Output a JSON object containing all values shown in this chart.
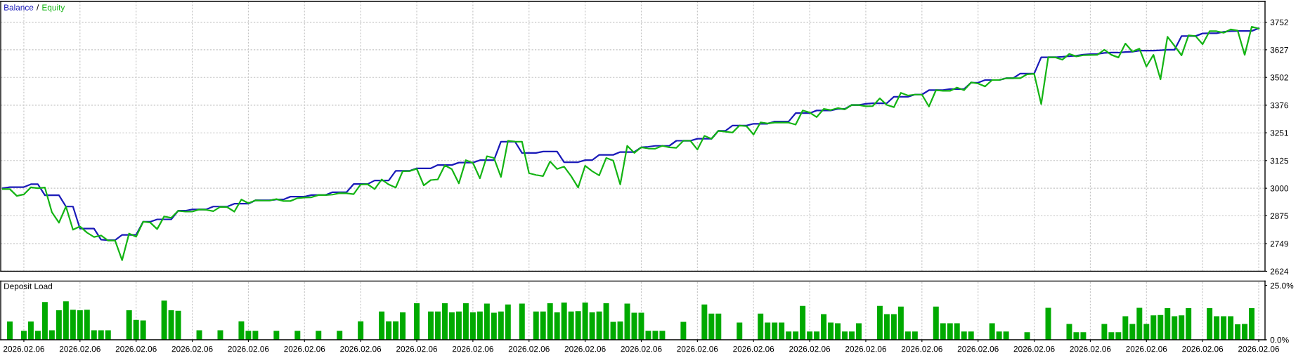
{
  "chart_data": [
    {
      "type": "line",
      "categories": [
        null,
        null,
        null,
        "2026.02.06",
        null,
        null,
        null,
        null,
        null,
        null,
        null,
        "2026.02.06",
        null,
        null,
        null,
        null,
        null,
        null,
        null,
        "2026.02.06",
        null,
        null,
        null,
        null,
        null,
        null,
        null,
        "2026.02.06",
        null,
        null,
        null,
        null,
        null,
        null,
        null,
        "2026.02.06",
        null,
        null,
        null,
        null,
        null,
        null,
        null,
        "2026.02.06",
        null,
        null,
        null,
        null,
        null,
        null,
        null,
        "2026.02.06",
        null,
        null,
        null,
        null,
        null,
        null,
        null,
        "2026.02.06",
        null,
        null,
        null,
        null,
        null,
        null,
        null,
        "2026.02.06",
        null,
        null,
        null,
        null,
        null,
        null,
        null,
        "2026.02.06",
        null,
        null,
        null,
        null,
        null,
        null,
        null,
        "2026.02.06",
        null,
        null,
        null,
        null,
        null,
        null,
        null,
        "2026.02.06",
        null,
        null,
        null,
        null,
        null,
        null,
        null,
        "2026.02.06",
        null,
        null,
        null,
        null,
        null,
        null,
        null,
        "2026.02.06",
        null,
        null,
        null,
        null,
        null,
        null,
        null,
        "2026.02.06",
        null,
        null,
        null,
        null,
        null,
        null,
        null,
        "2026.02.06",
        null,
        null,
        null,
        null,
        null,
        null,
        null,
        "2026.02.06",
        null,
        null,
        null,
        null,
        null,
        null,
        null,
        "2026.02.06",
        null,
        null,
        null,
        null,
        null,
        null,
        null,
        "2026.02.06",
        null,
        null,
        null,
        null,
        null,
        null,
        null,
        "2026.02.06",
        null,
        null,
        null,
        null,
        null,
        null,
        null,
        "2026.02.06",
        null,
        null,
        null,
        null,
        null,
        null,
        null,
        "2026.02.06",
        null,
        null,
        null,
        null,
        null,
        null,
        null,
        "2026.02.06"
      ],
      "series": [
        {
          "name": "Balance",
          "color": "#1a1ab8",
          "values": [
            3000,
            3005,
            3005,
            3005,
            3018,
            3018,
            2968,
            2968,
            2968,
            2917,
            2917,
            2817,
            2817,
            2817,
            2767,
            2765,
            2765,
            2789,
            2789,
            2789,
            2848,
            2848,
            2859,
            2859,
            2859,
            2898,
            2898,
            2904,
            2904,
            2904,
            2917,
            2917,
            2917,
            2930,
            2930,
            2930,
            2945,
            2945,
            2945,
            2949,
            2949,
            2962,
            2962,
            2962,
            2969,
            2969,
            2969,
            2982,
            2982,
            2982,
            3019,
            3019,
            3019,
            3035,
            3035,
            3035,
            3079,
            3079,
            3079,
            3090,
            3090,
            3090,
            3105,
            3105,
            3105,
            3116,
            3116,
            3116,
            3127,
            3127,
            3127,
            3211,
            3211,
            3211,
            3160,
            3160,
            3160,
            3166,
            3166,
            3166,
            3118,
            3118,
            3118,
            3127,
            3127,
            3151,
            3151,
            3151,
            3164,
            3164,
            3164,
            3185,
            3188,
            3192,
            3192,
            3192,
            3215,
            3215,
            3215,
            3224,
            3224,
            3224,
            3260,
            3260,
            3284,
            3284,
            3284,
            3292,
            3292,
            3292,
            3302,
            3302,
            3302,
            3340,
            3340,
            3340,
            3352,
            3352,
            3352,
            3359,
            3359,
            3377,
            3377,
            3382,
            3385,
            3385,
            3385,
            3414,
            3414,
            3414,
            3424,
            3424,
            3444,
            3444,
            3444,
            3449,
            3449,
            3449,
            3478,
            3478,
            3490,
            3490,
            3490,
            3498,
            3498,
            3519,
            3519,
            3519,
            3593,
            3593,
            3593,
            3595,
            3598,
            3600,
            3605,
            3607,
            3608,
            3613,
            3614,
            3614,
            3617,
            3618,
            3623,
            3623,
            3623,
            3625,
            3627,
            3627,
            3689,
            3689,
            3689,
            3701,
            3702,
            3702,
            3708,
            3711,
            3712,
            3712,
            3712,
            3724
          ]
        },
        {
          "name": "Equity",
          "color": "#14b414",
          "values": [
            2996,
            2996,
            2965,
            2972,
            3004,
            3000,
            3003,
            2891,
            2844,
            2917,
            2812,
            2827,
            2799,
            2779,
            2786,
            2763,
            2763,
            2674,
            2795,
            2780,
            2848,
            2845,
            2815,
            2872,
            2866,
            2898,
            2894,
            2894,
            2904,
            2902,
            2896,
            2916,
            2914,
            2894,
            2949,
            2932,
            2945,
            2944,
            2944,
            2951,
            2942,
            2942,
            2955,
            2958,
            2959,
            2969,
            2969,
            2971,
            2978,
            2977,
            2973,
            3017,
            3018,
            2996,
            3040,
            3017,
            3003,
            3077,
            3078,
            3088,
            3013,
            3037,
            3040,
            3104,
            3086,
            3022,
            3127,
            3115,
            3045,
            3145,
            3137,
            3051,
            3215,
            3211,
            3211,
            3068,
            3060,
            3055,
            3121,
            3087,
            3098,
            3055,
            3003,
            3102,
            3077,
            3058,
            3137,
            3125,
            3017,
            3192,
            3160,
            3185,
            3180,
            3179,
            3192,
            3185,
            3183,
            3215,
            3215,
            3175,
            3237,
            3224,
            3260,
            3256,
            3252,
            3284,
            3281,
            3243,
            3298,
            3293,
            3297,
            3297,
            3297,
            3288,
            3352,
            3343,
            3322,
            3359,
            3354,
            3363,
            3357,
            3377,
            3377,
            3371,
            3372,
            3407,
            3377,
            3367,
            3432,
            3420,
            3424,
            3424,
            3370,
            3444,
            3441,
            3441,
            3456,
            3444,
            3479,
            3474,
            3461,
            3490,
            3490,
            3498,
            3498,
            3498,
            3516,
            3518,
            3381,
            3593,
            3593,
            3582,
            3608,
            3597,
            3602,
            3603,
            3604,
            3627,
            3604,
            3592,
            3655,
            3619,
            3632,
            3551,
            3604,
            3493,
            3686,
            3645,
            3602,
            3692,
            3689,
            3652,
            3711,
            3711,
            3704,
            3719,
            3714,
            3604,
            3731,
            3723
          ]
        }
      ],
      "ylim": [
        2624,
        3846
      ],
      "yticks": [
        2624,
        2749,
        2875,
        3000,
        3125,
        3251,
        3376,
        3502,
        3627,
        3752
      ],
      "grid": true,
      "legend": "top left",
      "tick_labels": "y",
      "annotations": [
        "/"
      ]
    },
    {
      "type": "bar",
      "title": "Deposit Load",
      "categories": [
        null,
        null,
        null,
        "2026.02.06",
        null,
        null,
        null,
        null,
        null,
        null,
        null,
        "2026.02.06",
        null,
        null,
        null,
        null,
        null,
        null,
        null,
        "2026.02.06",
        null,
        null,
        null,
        null,
        null,
        null,
        null,
        "2026.02.06",
        null,
        null,
        null,
        null,
        null,
        null,
        null,
        "2026.02.06",
        null,
        null,
        null,
        null,
        null,
        null,
        null,
        "2026.02.06",
        null,
        null,
        null,
        null,
        null,
        null,
        null,
        "2026.02.06",
        null,
        null,
        null,
        null,
        null,
        null,
        null,
        "2026.02.06",
        null,
        null,
        null,
        null,
        null,
        null,
        null,
        "2026.02.06",
        null,
        null,
        null,
        null,
        null,
        null,
        null,
        "2026.02.06",
        null,
        null,
        null,
        null,
        null,
        null,
        null,
        "2026.02.06",
        null,
        null,
        null,
        null,
        null,
        null,
        null,
        "2026.02.06",
        null,
        null,
        null,
        null,
        null,
        null,
        null,
        "2026.02.06",
        null,
        null,
        null,
        null,
        null,
        null,
        null,
        "2026.02.06",
        null,
        null,
        null,
        null,
        null,
        null,
        null,
        "2026.02.06",
        null,
        null,
        null,
        null,
        null,
        null,
        null,
        "2026.02.06",
        null,
        null,
        null,
        null,
        null,
        null,
        null,
        "2026.02.06",
        null,
        null,
        null,
        null,
        null,
        null,
        null,
        "2026.02.06",
        null,
        null,
        null,
        null,
        null,
        null,
        null,
        "2026.02.06",
        null,
        null,
        null,
        null,
        null,
        null,
        null,
        "2026.02.06",
        null,
        null,
        null,
        null,
        null,
        null,
        null,
        "2026.02.06",
        null,
        null,
        null,
        null,
        null,
        null,
        null,
        "2026.02.06",
        null,
        null,
        null,
        null,
        null,
        null,
        null,
        "2026.02.06"
      ],
      "values": [
        null,
        8.4,
        null,
        4.1,
        8.4,
        4.1,
        17.4,
        4.4,
        13.6,
        17.7,
        13.8,
        13.6,
        13.8,
        4.4,
        4.4,
        4.4,
        null,
        null,
        13.6,
        9.1,
        8.9,
        null,
        null,
        18.0,
        13.6,
        13.3,
        null,
        null,
        4.4,
        null,
        null,
        4.4,
        null,
        null,
        8.5,
        4.1,
        4.1,
        null,
        null,
        4.1,
        null,
        null,
        4.1,
        null,
        null,
        4.1,
        null,
        null,
        4.1,
        null,
        null,
        8.5,
        null,
        null,
        13.0,
        8.5,
        8.5,
        12.6,
        null,
        16.8,
        null,
        13.0,
        13.0,
        16.8,
        12.6,
        13.0,
        16.8,
        12.6,
        13.0,
        16.6,
        12.4,
        13.0,
        16.2,
        null,
        16.6,
        null,
        13.0,
        13.0,
        16.8,
        12.6,
        17.1,
        13.0,
        13.2,
        17.1,
        12.6,
        13.0,
        16.8,
        8.2,
        8.4,
        16.6,
        12.4,
        12.4,
        4.1,
        4.1,
        4.1,
        null,
        null,
        8.2,
        null,
        null,
        16.2,
        12.0,
        12.0,
        null,
        null,
        7.9,
        null,
        null,
        12.0,
        7.9,
        7.9,
        7.9,
        3.8,
        3.8,
        15.6,
        3.8,
        3.8,
        11.8,
        7.9,
        7.6,
        3.8,
        3.8,
        7.6,
        null,
        null,
        15.6,
        11.8,
        11.8,
        15.3,
        3.8,
        3.8,
        null,
        null,
        15.3,
        7.6,
        7.6,
        7.6,
        3.8,
        3.8,
        null,
        null,
        7.6,
        3.8,
        3.8,
        null,
        null,
        3.5,
        null,
        null,
        14.7,
        null,
        null,
        7.3,
        3.5,
        3.5,
        null,
        null,
        7.3,
        3.5,
        3.5,
        10.8,
        7.3,
        14.7,
        7.3,
        11.2,
        11.4,
        14.5,
        10.8,
        11.2,
        14.5,
        null,
        null,
        14.5,
        10.8,
        10.8,
        10.8,
        7.1,
        7.3,
        14.5,
        null
      ],
      "color": "#00aa00",
      "ylim": [
        0,
        27
      ],
      "yticks": [
        {
          "value": 0,
          "label": "0.0%"
        },
        {
          "value": 25,
          "label": "25.0%"
        }
      ],
      "grid": "x"
    }
  ]
}
